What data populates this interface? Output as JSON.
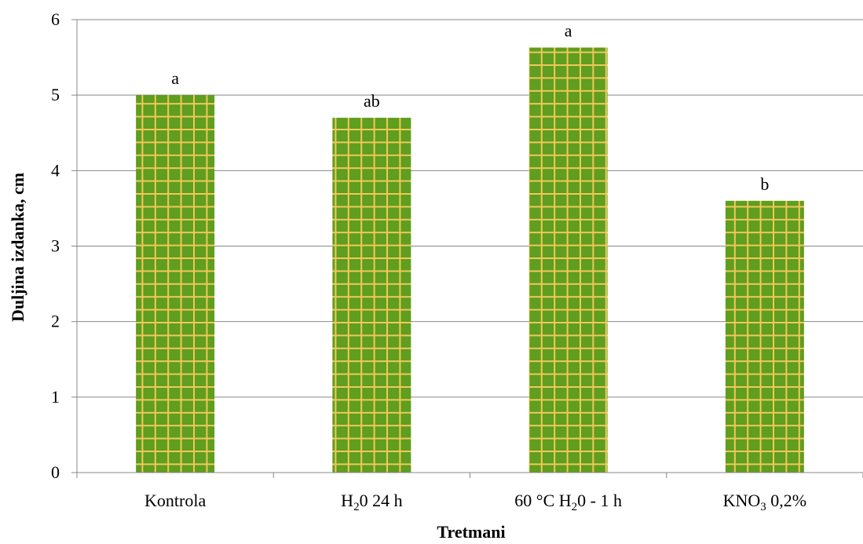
{
  "chart_data": {
    "type": "bar",
    "categories": [
      {
        "main": "Kontrola",
        "sub": "",
        "rest": ""
      },
      {
        "main": "H",
        "sub": "2",
        "rest": "0 24 h"
      },
      {
        "main": "60 °C H",
        "sub": "2",
        "rest": "0 - 1 h"
      },
      {
        "main": "KNO",
        "sub": "3",
        "rest": " 0,2%"
      }
    ],
    "values": [
      5.0,
      4.7,
      5.63,
      3.6
    ],
    "data_labels": [
      "a",
      "ab",
      "a",
      "b"
    ],
    "xlabel": "Tretmani",
    "ylabel": "Duljina izdanka, cm",
    "ylim": [
      0,
      6
    ],
    "yticks": [
      "0",
      "1",
      "2",
      "3",
      "4",
      "5",
      "6"
    ],
    "grid": true,
    "colors": {
      "bar_fill": "#5f9e1e",
      "bar_pattern": "#f2c85a",
      "grid": "#888888",
      "axis": "#888888"
    }
  }
}
